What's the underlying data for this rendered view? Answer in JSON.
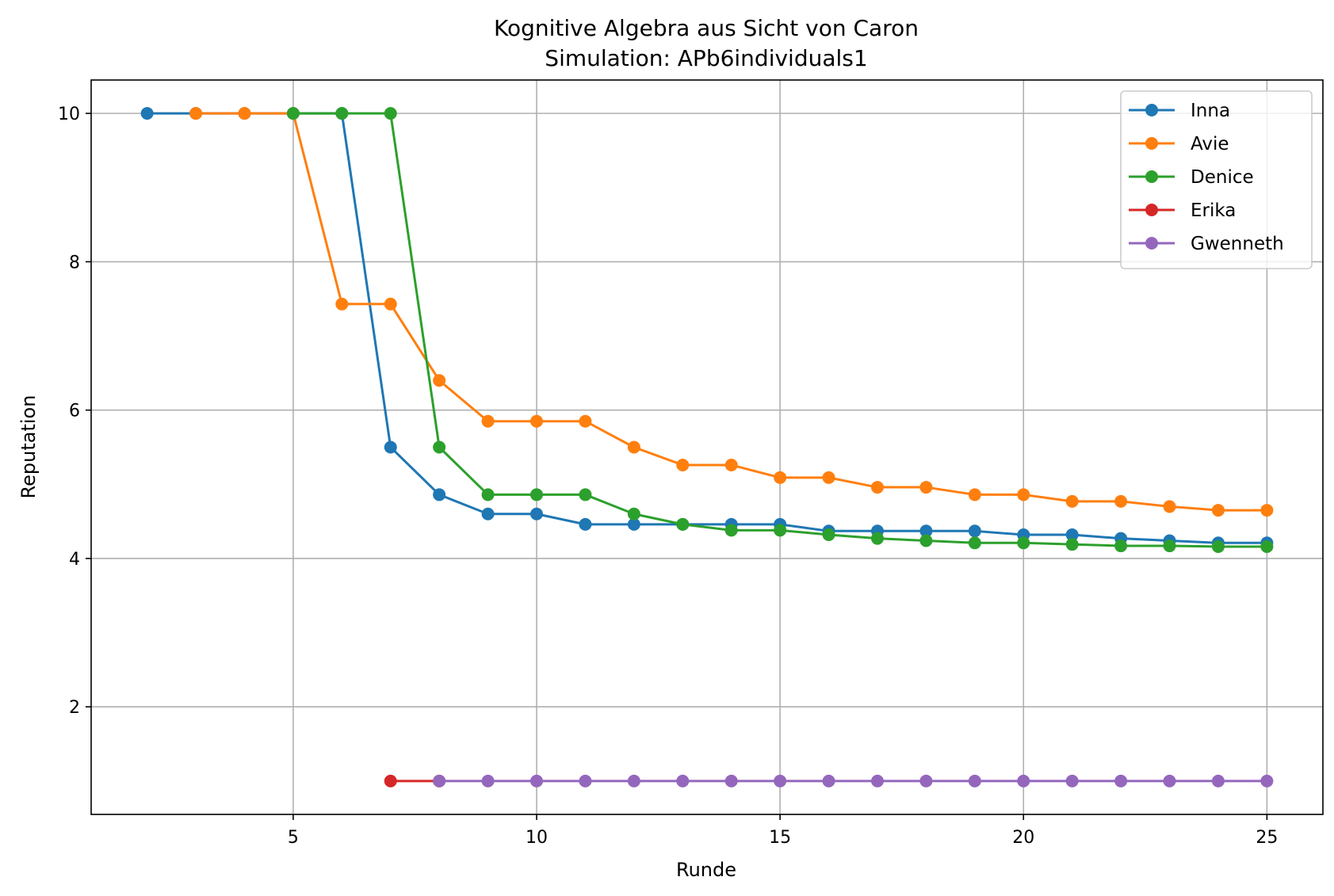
{
  "chart_data": {
    "type": "line",
    "title": "Kognitive Algebra aus Sicht von Caron",
    "subtitle": "Simulation: APb6individuals1",
    "xlabel": "Runde",
    "ylabel": "Reputation",
    "xlim": [
      0.85,
      26.15
    ],
    "ylim": [
      0.55,
      10.45
    ],
    "xticks": [
      5,
      10,
      15,
      20,
      25
    ],
    "yticks": [
      2,
      4,
      6,
      8,
      10
    ],
    "grid": true,
    "legend_position": "top-right",
    "series": [
      {
        "name": "Inna",
        "color": "#1f77b4",
        "x": [
          2,
          3,
          4,
          5,
          6,
          7,
          8,
          9,
          10,
          11,
          12,
          13,
          14,
          15,
          16,
          17,
          18,
          19,
          20,
          21,
          22,
          23,
          24,
          25
        ],
        "y": [
          10,
          10,
          10,
          10,
          10,
          5.5,
          4.86,
          4.6,
          4.6,
          4.46,
          4.46,
          4.46,
          4.46,
          4.46,
          4.37,
          4.37,
          4.37,
          4.37,
          4.32,
          4.32,
          4.27,
          4.24,
          4.21,
          4.21
        ]
      },
      {
        "name": "Avie",
        "color": "#ff7f0e",
        "x": [
          3,
          4,
          5,
          6,
          7,
          8,
          9,
          10,
          11,
          12,
          13,
          14,
          15,
          16,
          17,
          18,
          19,
          20,
          21,
          22,
          23,
          24,
          25
        ],
        "y": [
          10,
          10,
          10,
          7.43,
          7.43,
          6.4,
          5.85,
          5.85,
          5.85,
          5.5,
          5.26,
          5.26,
          5.09,
          5.09,
          4.96,
          4.96,
          4.86,
          4.86,
          4.77,
          4.77,
          4.7,
          4.65,
          4.65
        ]
      },
      {
        "name": "Denice",
        "color": "#2ca02c",
        "x": [
          5,
          6,
          7,
          8,
          9,
          10,
          11,
          12,
          13,
          14,
          15,
          16,
          17,
          18,
          19,
          20,
          21,
          22,
          23,
          24,
          25
        ],
        "y": [
          10,
          10,
          10,
          5.5,
          4.86,
          4.86,
          4.86,
          4.6,
          4.46,
          4.38,
          4.38,
          4.32,
          4.27,
          4.24,
          4.21,
          4.21,
          4.19,
          4.17,
          4.17,
          4.16,
          4.16
        ]
      },
      {
        "name": "Erika",
        "color": "#d62728",
        "x": [
          7,
          8
        ],
        "y": [
          1,
          1
        ]
      },
      {
        "name": "Gwenneth",
        "color": "#9467bd",
        "x": [
          8,
          9,
          10,
          11,
          12,
          13,
          14,
          15,
          16,
          17,
          18,
          19,
          20,
          21,
          22,
          23,
          24,
          25
        ],
        "y": [
          1,
          1,
          1,
          1,
          1,
          1,
          1,
          1,
          1,
          1,
          1,
          1,
          1,
          1,
          1,
          1,
          1,
          1
        ]
      }
    ]
  }
}
